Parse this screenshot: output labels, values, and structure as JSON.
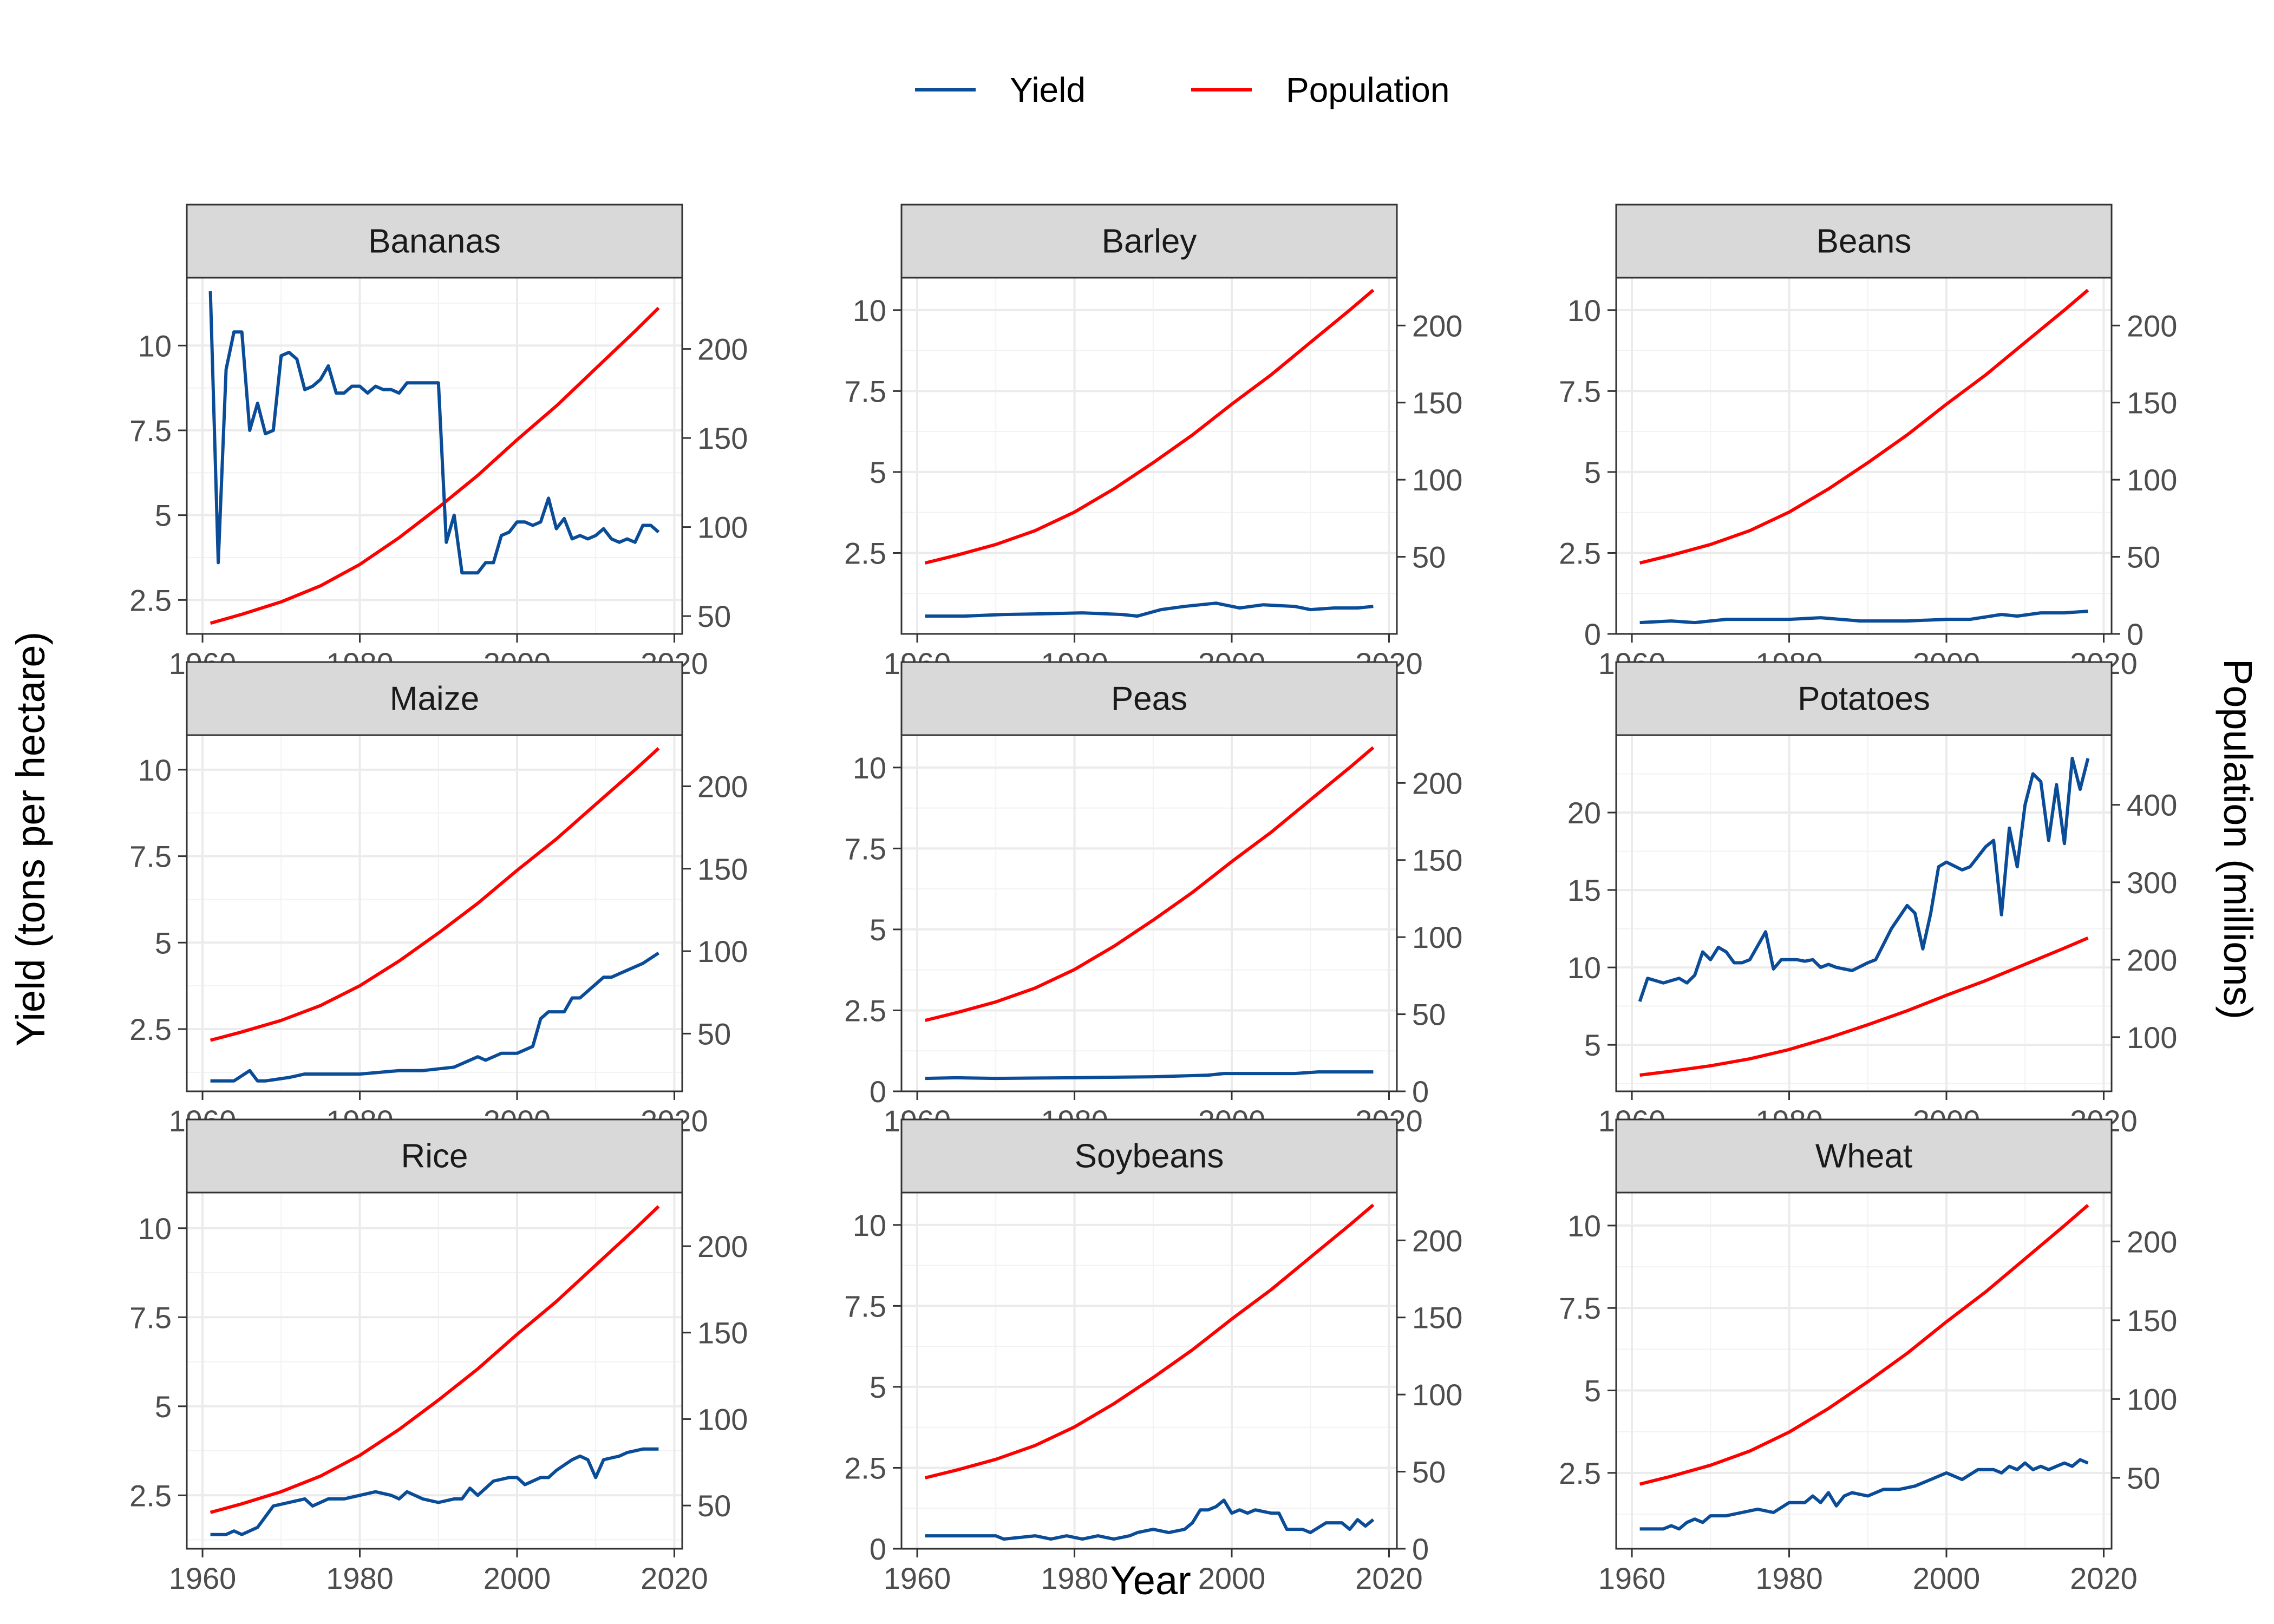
{
  "colors": {
    "yield": "#0a4c97",
    "population": "#ff0000"
  },
  "chart_data": {
    "type": "line",
    "layout": "facet-grid-3x3",
    "xlabel": "Year",
    "ylabel": "Yield (tons per hectare)",
    "y2label": "Population (millions)",
    "legend": {
      "position": "top",
      "entries": [
        "Yield",
        "Population"
      ]
    },
    "grid": true,
    "xlim": [
      1958,
      2021
    ],
    "x_ticks": [
      "1960",
      "1980",
      "2000",
      "2020"
    ],
    "population": {
      "x": [
        1961,
        1965,
        1970,
        1975,
        1980,
        1985,
        1990,
        1995,
        2000,
        2005,
        2010,
        2015,
        2018
      ],
      "y": [
        46,
        51,
        58,
        67,
        79,
        94,
        111,
        129,
        149,
        168,
        189,
        210,
        223
      ]
    },
    "panels": [
      {
        "name": "Bananas",
        "ylim": [
          1.5,
          12.0
        ],
        "y_ticks": [
          2.5,
          5.0,
          7.5,
          10.0
        ],
        "y2lim": [
          40,
          240
        ],
        "y2_ticks": [
          50,
          100,
          150,
          200
        ],
        "pop_shift": 0,
        "yield": {
          "x": [
            1961,
            1962,
            1963,
            1964,
            1965,
            1966,
            1967,
            1968,
            1969,
            1970,
            1971,
            1972,
            1973,
            1974,
            1975,
            1976,
            1977,
            1978,
            1979,
            1980,
            1981,
            1982,
            1983,
            1984,
            1985,
            1986,
            1987,
            1988,
            1989,
            1990,
            1991,
            1992,
            1993,
            1994,
            1995,
            1996,
            1997,
            1998,
            1999,
            2000,
            2001,
            2002,
            2003,
            2004,
            2005,
            2006,
            2007,
            2008,
            2009,
            2010,
            2011,
            2012,
            2013,
            2014,
            2015,
            2016,
            2017,
            2018
          ],
          "y": [
            11.6,
            3.6,
            9.3,
            10.4,
            10.4,
            7.5,
            8.3,
            7.4,
            7.5,
            9.7,
            9.8,
            9.6,
            8.7,
            8.8,
            9.0,
            9.4,
            8.6,
            8.6,
            8.8,
            8.8,
            8.6,
            8.8,
            8.7,
            8.7,
            8.6,
            8.9,
            8.9,
            8.9,
            8.9,
            8.9,
            4.2,
            5.0,
            3.3,
            3.3,
            3.3,
            3.6,
            3.6,
            4.4,
            4.5,
            4.8,
            4.8,
            4.7,
            4.8,
            5.5,
            4.6,
            4.9,
            4.3,
            4.4,
            4.3,
            4.4,
            4.6,
            4.3,
            4.2,
            4.3,
            4.2,
            4.7,
            4.7,
            4.5
          ]
        }
      },
      {
        "name": "Barley",
        "ylim": [
          0,
          11.0
        ],
        "y_ticks": [
          2.5,
          5.0,
          7.5,
          10.0
        ],
        "y2lim": [
          0,
          231
        ],
        "y2_ticks": [
          50,
          100,
          150,
          200
        ],
        "pop_shift": 0,
        "yield": {
          "x": [
            1961,
            1966,
            1971,
            1976,
            1981,
            1986,
            1988,
            1991,
            1994,
            1998,
            2001,
            2004,
            2008,
            2010,
            2013,
            2016,
            2018
          ],
          "y": [
            0.55,
            0.55,
            0.6,
            0.62,
            0.65,
            0.6,
            0.55,
            0.75,
            0.85,
            0.95,
            0.8,
            0.9,
            0.85,
            0.75,
            0.8,
            0.8,
            0.85
          ]
        }
      },
      {
        "name": "Beans",
        "ylim": [
          0,
          11.0
        ],
        "y_ticks": [
          0.0,
          2.5,
          5.0,
          7.5,
          10.0
        ],
        "y2lim": [
          0,
          231
        ],
        "y2_ticks": [
          0,
          50,
          100,
          150,
          200
        ],
        "pop_shift": 0,
        "yield": {
          "x": [
            1961,
            1965,
            1968,
            1972,
            1980,
            1984,
            1989,
            1995,
            2000,
            2003,
            2007,
            2009,
            2012,
            2015,
            2018
          ],
          "y": [
            0.35,
            0.4,
            0.35,
            0.45,
            0.45,
            0.5,
            0.4,
            0.4,
            0.45,
            0.45,
            0.6,
            0.55,
            0.65,
            0.65,
            0.7
          ]
        }
      },
      {
        "name": "Maize",
        "ylim": [
          0.7,
          11.0
        ],
        "y_ticks": [
          2.5,
          5.0,
          7.5,
          10.0
        ],
        "y2lim": [
          15,
          231
        ],
        "y2_ticks": [
          50,
          100,
          150,
          200
        ],
        "pop_shift": 0,
        "yield": {
          "x": [
            1961,
            1964,
            1966,
            1967,
            1968,
            1971,
            1973,
            1975,
            1977,
            1980,
            1985,
            1988,
            1992,
            1995,
            1996,
            1998,
            2000,
            2002,
            2003,
            2004,
            2006,
            2007,
            2008,
            2010,
            2011,
            2012,
            2014,
            2016,
            2018
          ],
          "y": [
            1.0,
            1.0,
            1.3,
            1.0,
            1.0,
            1.1,
            1.2,
            1.2,
            1.2,
            1.2,
            1.3,
            1.3,
            1.4,
            1.7,
            1.6,
            1.8,
            1.8,
            2.0,
            2.8,
            3.0,
            3.0,
            3.4,
            3.4,
            3.8,
            4.0,
            4.0,
            4.2,
            4.4,
            4.7
          ]
        }
      },
      {
        "name": "Peas",
        "ylim": [
          0,
          11.0
        ],
        "y_ticks": [
          0.0,
          2.5,
          5.0,
          7.5,
          10.0
        ],
        "y2lim": [
          0,
          231
        ],
        "y2_ticks": [
          0,
          50,
          100,
          150,
          200
        ],
        "pop_shift": 0,
        "yield": {
          "x": [
            1961,
            1965,
            1970,
            1980,
            1990,
            1997,
            1999,
            2003,
            2008,
            2011,
            2014,
            2018
          ],
          "y": [
            0.4,
            0.42,
            0.4,
            0.42,
            0.45,
            0.5,
            0.55,
            0.55,
            0.55,
            0.6,
            0.6,
            0.6
          ]
        }
      },
      {
        "name": "Potatoes",
        "ylim": [
          2.0,
          25.0
        ],
        "y_ticks": [
          5,
          10,
          15,
          20
        ],
        "y2lim": [
          30,
          490
        ],
        "y2_ticks": [
          100,
          200,
          300,
          400
        ],
        "pop_shift": 5,
        "yield": {
          "x": [
            1961,
            1962,
            1964,
            1966,
            1967,
            1968,
            1969,
            1970,
            1971,
            1972,
            1973,
            1974,
            1975,
            1977,
            1978,
            1979,
            1981,
            1982,
            1983,
            1984,
            1985,
            1986,
            1988,
            1990,
            1991,
            1993,
            1995,
            1996,
            1997,
            1998,
            1999,
            2000,
            2002,
            2003,
            2005,
            2006,
            2007,
            2008,
            2009,
            2010,
            2011,
            2012,
            2013,
            2014,
            2015,
            2016,
            2017,
            2018
          ],
          "y": [
            7.8,
            9.3,
            9.0,
            9.3,
            9.0,
            9.5,
            11.0,
            10.5,
            11.3,
            11.0,
            10.3,
            10.3,
            10.5,
            12.3,
            9.9,
            10.5,
            10.5,
            10.4,
            10.5,
            10.0,
            10.2,
            10.0,
            9.8,
            10.3,
            10.5,
            12.5,
            14.0,
            13.5,
            11.2,
            13.5,
            16.5,
            16.8,
            16.3,
            16.5,
            17.8,
            18.2,
            13.4,
            19.0,
            16.5,
            20.5,
            22.5,
            22.0,
            18.2,
            21.8,
            18.0,
            23.5,
            21.5,
            23.5
          ]
        }
      },
      {
        "name": "Rice",
        "ylim": [
          1.0,
          11.0
        ],
        "y_ticks": [
          2.5,
          5.0,
          7.5,
          10.0
        ],
        "y2lim": [
          25,
          231
        ],
        "y2_ticks": [
          50,
          100,
          150,
          200
        ],
        "pop_shift": 0,
        "yield": {
          "x": [
            1961,
            1963,
            1964,
            1965,
            1967,
            1969,
            1971,
            1973,
            1974,
            1976,
            1978,
            1980,
            1982,
            1984,
            1985,
            1986,
            1988,
            1990,
            1992,
            1993,
            1994,
            1995,
            1997,
            1999,
            2000,
            2001,
            2003,
            2004,
            2005,
            2007,
            2008,
            2009,
            2010,
            2011,
            2013,
            2014,
            2016,
            2018
          ],
          "y": [
            1.4,
            1.4,
            1.5,
            1.4,
            1.6,
            2.2,
            2.3,
            2.4,
            2.2,
            2.4,
            2.4,
            2.5,
            2.6,
            2.5,
            2.4,
            2.6,
            2.4,
            2.3,
            2.4,
            2.4,
            2.7,
            2.5,
            2.9,
            3.0,
            3.0,
            2.8,
            3.0,
            3.0,
            3.2,
            3.5,
            3.6,
            3.5,
            3.0,
            3.5,
            3.6,
            3.7,
            3.8,
            3.8
          ]
        }
      },
      {
        "name": "Soybeans",
        "ylim": [
          0,
          11.0
        ],
        "y_ticks": [
          0.0,
          2.5,
          5.0,
          7.5,
          10.0
        ],
        "y2lim": [
          0,
          231
        ],
        "y2_ticks": [
          0,
          50,
          100,
          150,
          200
        ],
        "pop_shift": 0,
        "yield": {
          "x": [
            1961,
            1966,
            1970,
            1971,
            1975,
            1977,
            1979,
            1981,
            1983,
            1985,
            1987,
            1988,
            1990,
            1992,
            1994,
            1995,
            1996,
            1997,
            1998,
            1999,
            2000,
            2001,
            2002,
            2003,
            2005,
            2006,
            2007,
            2009,
            2010,
            2012,
            2014,
            2015,
            2016,
            2017,
            2018
          ],
          "y": [
            0.4,
            0.4,
            0.4,
            0.3,
            0.4,
            0.3,
            0.4,
            0.3,
            0.4,
            0.3,
            0.4,
            0.5,
            0.6,
            0.5,
            0.6,
            0.8,
            1.2,
            1.2,
            1.3,
            1.5,
            1.1,
            1.2,
            1.1,
            1.2,
            1.1,
            1.1,
            0.6,
            0.6,
            0.5,
            0.8,
            0.8,
            0.6,
            0.9,
            0.7,
            0.9
          ]
        }
      },
      {
        "name": "Wheat",
        "ylim": [
          0.2,
          11.0
        ],
        "y_ticks": [
          2.5,
          5.0,
          7.5,
          10.0
        ],
        "y2lim": [
          5,
          231
        ],
        "y2_ticks": [
          50,
          100,
          150,
          200
        ],
        "pop_shift": 0,
        "yield": {
          "x": [
            1961,
            1963,
            1964,
            1965,
            1966,
            1967,
            1968,
            1969,
            1970,
            1972,
            1974,
            1976,
            1978,
            1980,
            1982,
            1983,
            1984,
            1985,
            1986,
            1987,
            1988,
            1990,
            1992,
            1994,
            1996,
            1998,
            2000,
            2002,
            2004,
            2006,
            2007,
            2008,
            2009,
            2010,
            2011,
            2012,
            2013,
            2014,
            2015,
            2016,
            2017,
            2018
          ],
          "y": [
            0.8,
            0.8,
            0.8,
            0.9,
            0.8,
            1.0,
            1.1,
            1.0,
            1.2,
            1.2,
            1.3,
            1.4,
            1.3,
            1.6,
            1.6,
            1.8,
            1.6,
            1.9,
            1.5,
            1.8,
            1.9,
            1.8,
            2.0,
            2.0,
            2.1,
            2.3,
            2.5,
            2.3,
            2.6,
            2.6,
            2.5,
            2.7,
            2.6,
            2.8,
            2.6,
            2.7,
            2.6,
            2.7,
            2.8,
            2.7,
            2.9,
            2.8
          ]
        }
      }
    ]
  }
}
